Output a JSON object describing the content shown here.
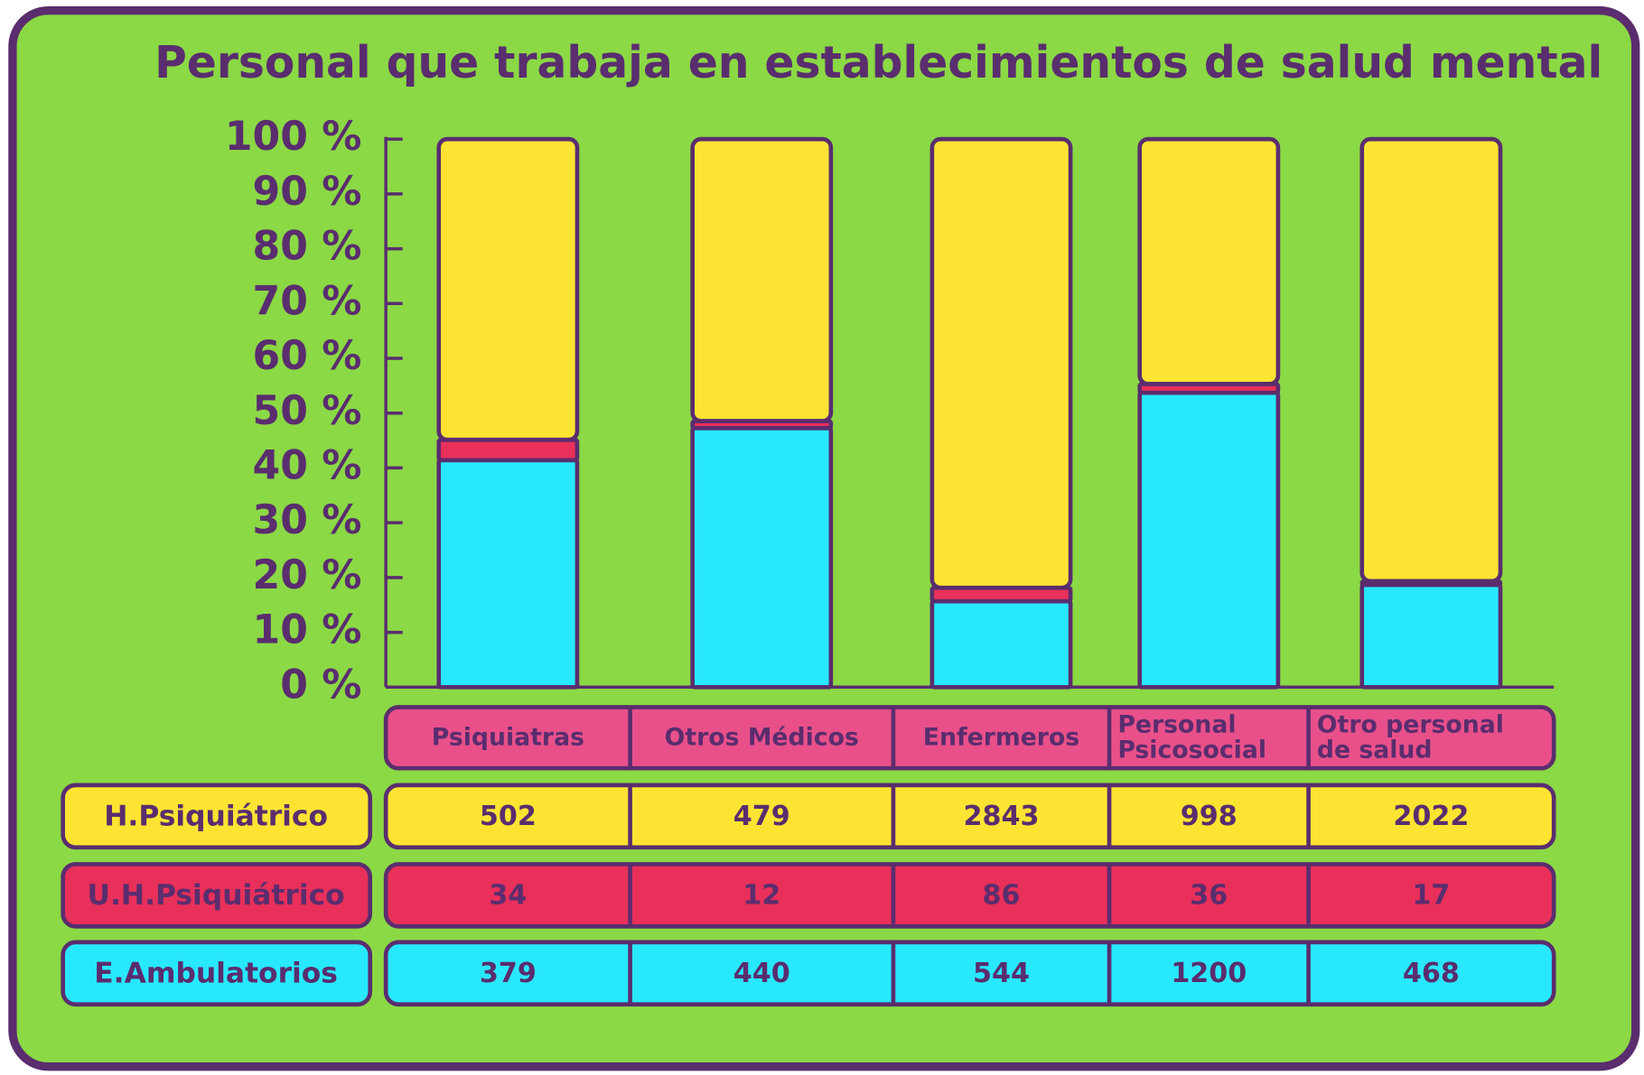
{
  "chart_data": {
    "type": "bar",
    "stacked": "percent",
    "title": "Personal que trabaja en establecimientos de salud mental",
    "categories": [
      "Psiquiatras",
      "Otros Médicos",
      "Enfermeros",
      "Personal Psicosocial",
      "Otro personal de salud"
    ],
    "series": [
      {
        "name": "H.Psiquiátrico",
        "color": "#fde432",
        "values": [
          502,
          479,
          2843,
          998,
          2022
        ]
      },
      {
        "name": "U.H.Psiquiátrico",
        "color": "#e8305a",
        "values": [
          34,
          12,
          86,
          36,
          17
        ]
      },
      {
        "name": "E.Ambulatorios",
        "color": "#28e8fc",
        "values": [
          379,
          440,
          544,
          1200,
          468
        ]
      }
    ],
    "ylim": [
      0,
      100
    ],
    "yticks": [
      {
        "value": 0,
        "label": "0 %"
      },
      {
        "value": 10,
        "label": "10 %"
      },
      {
        "value": 20,
        "label": "20 %"
      },
      {
        "value": 30,
        "label": "30 %"
      },
      {
        "value": 40,
        "label": "40 %"
      },
      {
        "value": 50,
        "label": "50 %"
      },
      {
        "value": 60,
        "label": "60 %"
      },
      {
        "value": 70,
        "label": "70 %"
      },
      {
        "value": 80,
        "label": "80 %"
      },
      {
        "value": 90,
        "label": "90 %"
      },
      {
        "value": 100,
        "label": "100 %"
      }
    ],
    "header_color": "#e9508a"
  }
}
